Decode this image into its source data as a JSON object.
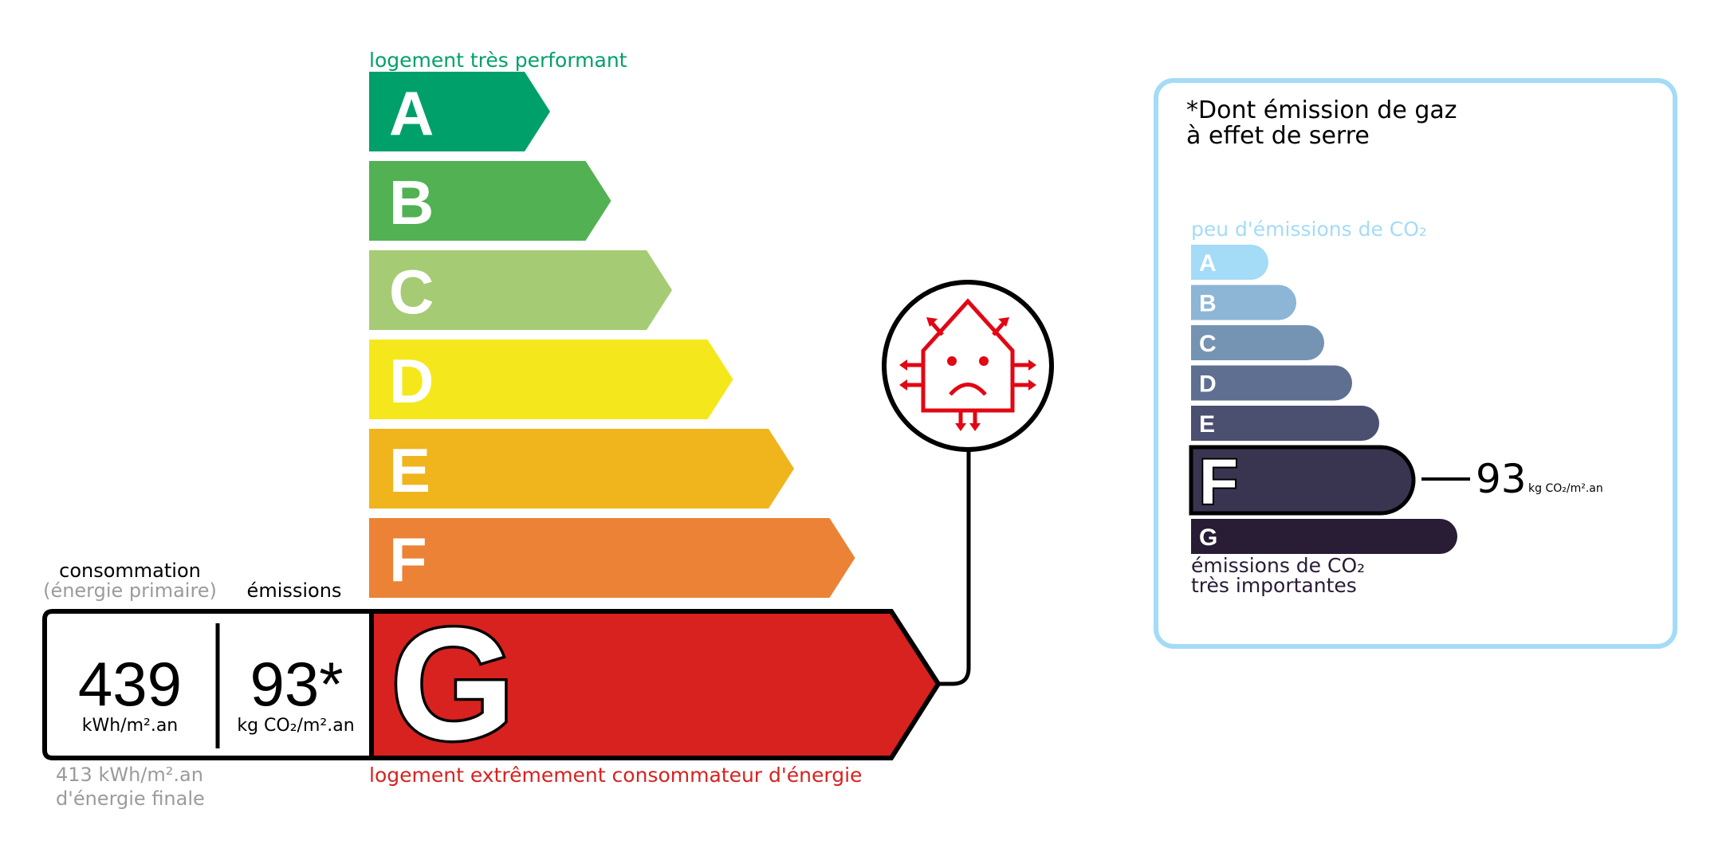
{
  "energy": {
    "top_label": "logement très performant",
    "bottom_label": "logement extrêmement consommateur d'énergie",
    "classes": [
      {
        "letter": "A",
        "color": "#00a06b"
      },
      {
        "letter": "B",
        "color": "#52b153"
      },
      {
        "letter": "C",
        "color": "#a5cc74"
      },
      {
        "letter": "D",
        "color": "#f4e81c"
      },
      {
        "letter": "E",
        "color": "#f0b41c"
      },
      {
        "letter": "F",
        "color": "#eb8235"
      },
      {
        "letter": "G",
        "color": "#d7221f"
      }
    ],
    "current_class": "G",
    "top_label_color": "#00a06b",
    "bottom_label_color": "#d7221f"
  },
  "values": {
    "consumption_heading": "consommation",
    "consumption_subheading": "(énergie primaire)",
    "emissions_heading": "émissions",
    "consumption_value": "439",
    "consumption_unit": "kWh/m².an",
    "emissions_value": "93*",
    "emissions_unit": "kg CO₂/m².an",
    "final_energy_line1": "413 kWh/m².an",
    "final_energy_line2": "d'énergie finale"
  },
  "icon": {
    "name": "passoire-thermique-house-icon",
    "color": "#e30613"
  },
  "ghg_panel": {
    "title_line1": "*Dont émission de gaz",
    "title_line2": "à effet de serre",
    "top_label": "peu d'émissions de CO₂",
    "bottom_label_line1": "émissions de CO₂",
    "bottom_label_line2": "très importantes",
    "classes": [
      {
        "letter": "A",
        "color": "#a4dbf7"
      },
      {
        "letter": "B",
        "color": "#8db5d5"
      },
      {
        "letter": "C",
        "color": "#7593b3"
      },
      {
        "letter": "D",
        "color": "#5e6f91"
      },
      {
        "letter": "E",
        "color": "#4b4f70"
      },
      {
        "letter": "F",
        "color": "#393551"
      },
      {
        "letter": "G",
        "color": "#291c35"
      }
    ],
    "current_class": "F",
    "value": "93",
    "unit": "kg CO₂/m².an",
    "border_color": "#a4dbf7"
  }
}
